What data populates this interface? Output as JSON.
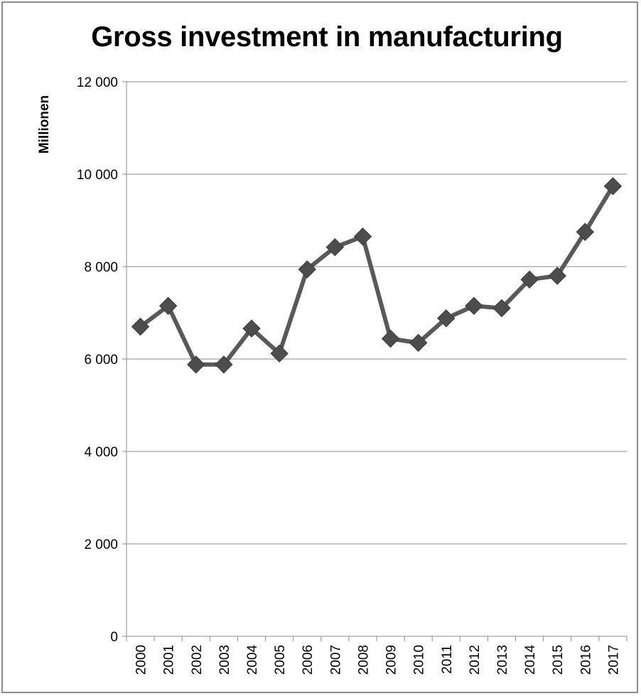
{
  "chart_data": {
    "type": "line",
    "title": "Gross investment in manufacturing",
    "xlabel": "",
    "ylabel": "Millionen",
    "categories": [
      "2000",
      "2001",
      "2002",
      "2003",
      "2004",
      "2005",
      "2006",
      "2007",
      "2008",
      "2009",
      "2010",
      "2011",
      "2012",
      "2013",
      "2014",
      "2015",
      "2016",
      "2017"
    ],
    "series": [
      {
        "values": [
          6700,
          7150,
          5880,
          5880,
          6660,
          6120,
          7940,
          8420,
          8650,
          6440,
          6350,
          6880,
          7150,
          7100,
          7720,
          7800,
          8750,
          9740
        ],
        "color": "#595959",
        "marker": "diamond"
      }
    ],
    "ylim": [
      0,
      12000
    ],
    "yticks": [
      0,
      2000,
      4000,
      6000,
      8000,
      10000,
      12000
    ],
    "ytick_labels": [
      "0",
      "2 000",
      "4 000",
      "6 000",
      "8 000",
      "10 000",
      "12 000"
    ],
    "grid": "horizontal",
    "legend": "none"
  }
}
